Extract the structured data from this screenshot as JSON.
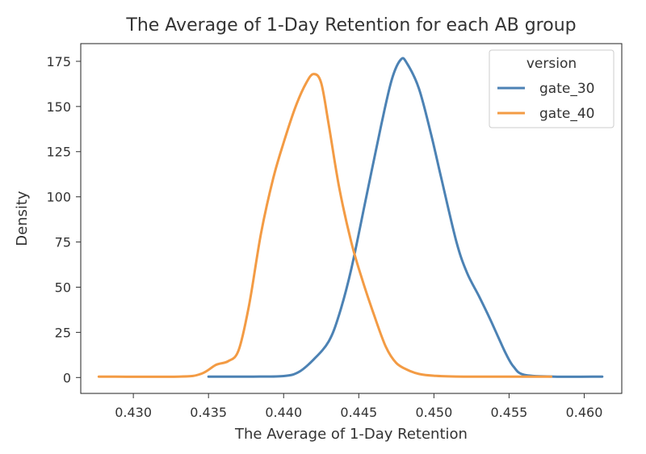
{
  "chart_data": {
    "type": "line",
    "title": "The Average of 1-Day Retention for each AB group",
    "xlabel": "The Average of 1-Day Retention",
    "ylabel": "Density",
    "xlim": [
      0.4265,
      0.4625
    ],
    "ylim": [
      -8.8,
      184.8
    ],
    "xticks": [
      0.43,
      0.435,
      0.44,
      0.445,
      0.45,
      0.455,
      0.46
    ],
    "xtick_labels": [
      "0.430",
      "0.435",
      "0.440",
      "0.445",
      "0.450",
      "0.455",
      "0.460"
    ],
    "yticks": [
      0,
      25,
      50,
      75,
      100,
      125,
      150,
      175
    ],
    "ytick_labels": [
      "0",
      "25",
      "50",
      "75",
      "100",
      "125",
      "150",
      "175"
    ],
    "grid": false,
    "legend": {
      "title": "version",
      "position": "top-right"
    },
    "series": [
      {
        "name": "gate_30",
        "color": "#4c82b4",
        "x": [
          0.435,
          0.438,
          0.44,
          0.441,
          0.442,
          0.443,
          0.4437,
          0.4445,
          0.4455,
          0.4465,
          0.4472,
          0.4478,
          0.4482,
          0.449,
          0.4498,
          0.4505,
          0.4515,
          0.4522,
          0.453,
          0.4537,
          0.4543,
          0.4548,
          0.4553,
          0.456,
          0.458,
          0.4612
        ],
        "y": [
          0.5,
          0.5,
          0.8,
          3,
          10,
          20,
          35,
          60,
          100,
          140,
          165,
          176,
          174,
          160,
          135,
          110,
          75,
          58,
          45,
          33,
          22,
          13,
          6,
          1.5,
          0.5,
          0.5
        ]
      },
      {
        "name": "gate_40",
        "color": "#f39b44",
        "x": [
          0.4277,
          0.433,
          0.4345,
          0.4355,
          0.4363,
          0.437,
          0.4377,
          0.4385,
          0.4393,
          0.44,
          0.4408,
          0.4415,
          0.442,
          0.4425,
          0.443,
          0.4437,
          0.4445,
          0.4452,
          0.446,
          0.4468,
          0.4475,
          0.4483,
          0.449,
          0.45,
          0.452,
          0.4578
        ],
        "y": [
          0.5,
          0.5,
          2,
          7,
          9,
          15,
          40,
          80,
          110,
          130,
          150,
          163,
          168,
          163,
          140,
          105,
          75,
          55,
          35,
          17,
          8,
          4,
          2,
          1,
          0.5,
          0.5
        ]
      }
    ]
  }
}
